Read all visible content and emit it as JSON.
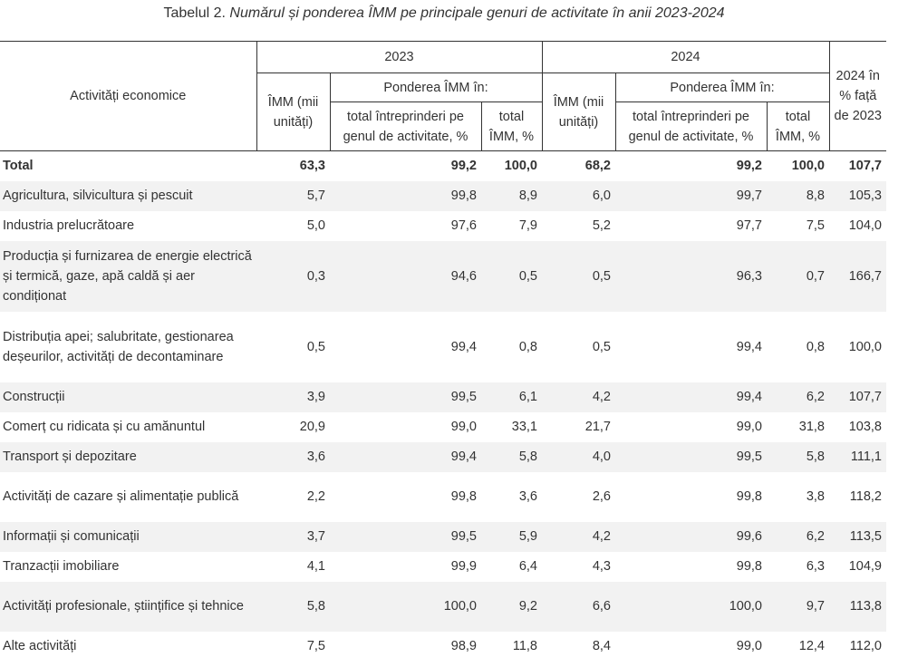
{
  "caption": {
    "lead": "Tabelul 2. ",
    "rest": "Numărul și ponderea ÎMM pe principale genuri de activitate în anii 2023-2024"
  },
  "headers": {
    "activity": "Activități economice",
    "year_2023": "2023",
    "year_2024": "2024",
    "imm_count": "ÎMM (mii unități)",
    "weight": "Ponderea ÎMM în:",
    "total_enterprises": "total întreprinderi pe genul de activitate, %",
    "total_imm": "total ÎMM, %",
    "change": "2024 în % față de 2023"
  },
  "rows": [
    {
      "name": "Total",
      "c1": "63,3",
      "c2": "99,2",
      "c3": "100,0",
      "c4": "68,2",
      "c5": "99,2",
      "c6": "100,0",
      "c7": "107,7"
    },
    {
      "name": "Agricultura, silvicultura și pescuit",
      "c1": "5,7",
      "c2": "99,8",
      "c3": "8,9",
      "c4": "6,0",
      "c5": "99,7",
      "c6": "8,8",
      "c7": "105,3"
    },
    {
      "name": "Industria prelucrătoare",
      "c1": "5,0",
      "c2": "97,6",
      "c3": "7,9",
      "c4": "5,2",
      "c5": "97,7",
      "c6": "7,5",
      "c7": "104,0"
    },
    {
      "name": "Producția și furnizarea de energie electrică și termică, gaze, apă caldă și aer condiționat",
      "c1": "0,3",
      "c2": "94,6",
      "c3": "0,5",
      "c4": "0,5",
      "c5": "96,3",
      "c6": "0,7",
      "c7": "166,7"
    },
    {
      "name": "Distribuția apei; salubritate, gestionarea deșeurilor, activități de decontaminare",
      "c1": "0,5",
      "c2": "99,4",
      "c3": "0,8",
      "c4": "0,5",
      "c5": "99,4",
      "c6": "0,8",
      "c7": "100,0"
    },
    {
      "name": "Construcții",
      "c1": "3,9",
      "c2": "99,5",
      "c3": "6,1",
      "c4": "4,2",
      "c5": "99,4",
      "c6": "6,2",
      "c7": "107,7"
    },
    {
      "name": "Comerț cu ridicata și cu amănuntul",
      "c1": "20,9",
      "c2": "99,0",
      "c3": "33,1",
      "c4": "21,7",
      "c5": "99,0",
      "c6": "31,8",
      "c7": "103,8"
    },
    {
      "name": "Transport și depozitare",
      "c1": "3,6",
      "c2": "99,4",
      "c3": "5,8",
      "c4": "4,0",
      "c5": "99,5",
      "c6": "5,8",
      "c7": "111,1"
    },
    {
      "name": "Activități de cazare și alimentație publică",
      "c1": "2,2",
      "c2": "99,8",
      "c3": "3,6",
      "c4": "2,6",
      "c5": "99,8",
      "c6": "3,8",
      "c7": "118,2"
    },
    {
      "name": "Informații și comunicații",
      "c1": "3,7",
      "c2": "99,5",
      "c3": "5,9",
      "c4": "4,2",
      "c5": "99,6",
      "c6": "6,2",
      "c7": "113,5"
    },
    {
      "name": "Tranzacții imobiliare",
      "c1": "4,1",
      "c2": "99,9",
      "c3": "6,4",
      "c4": "4,3",
      "c5": "99,8",
      "c6": "6,3",
      "c7": "104,9"
    },
    {
      "name": "Activități profesionale, științifice și tehnice",
      "c1": "5,8",
      "c2": "100,0",
      "c3": "9,2",
      "c4": "6,6",
      "c5": "100,0",
      "c6": "9,7",
      "c7": "113,8"
    },
    {
      "name": "Alte activități",
      "c1": "7,5",
      "c2": "98,9",
      "c3": "11,8",
      "c4": "8,4",
      "c5": "99,0",
      "c6": "12,4",
      "c7": "112,0"
    }
  ]
}
